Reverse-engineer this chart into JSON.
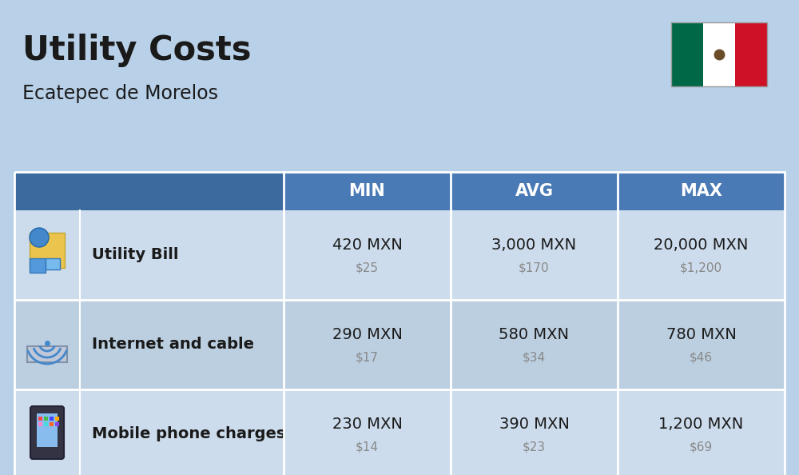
{
  "title": "Utility Costs",
  "subtitle": "Ecatepec de Morelos",
  "background_color": "#b8d0e8",
  "header_color": "#4a7ab5",
  "header_text_color": "#ffffff",
  "row_color_1": "#ccdcec",
  "row_color_2": "#bccfe0",
  "col_headers": [
    "MIN",
    "AVG",
    "MAX"
  ],
  "rows": [
    {
      "label": "Utility Bill",
      "min_mxn": "420 MXN",
      "min_usd": "$25",
      "avg_mxn": "3,000 MXN",
      "avg_usd": "$170",
      "max_mxn": "20,000 MXN",
      "max_usd": "$1,200",
      "icon": "utility"
    },
    {
      "label": "Internet and cable",
      "min_mxn": "290 MXN",
      "min_usd": "$17",
      "avg_mxn": "580 MXN",
      "avg_usd": "$34",
      "max_mxn": "780 MXN",
      "max_usd": "$46",
      "icon": "internet"
    },
    {
      "label": "Mobile phone charges",
      "min_mxn": "230 MXN",
      "min_usd": "$14",
      "avg_mxn": "390 MXN",
      "avg_usd": "$23",
      "max_mxn": "1,200 MXN",
      "max_usd": "$69",
      "icon": "mobile"
    }
  ],
  "title_fontsize": 30,
  "subtitle_fontsize": 17,
  "header_fontsize": 15,
  "label_fontsize": 14,
  "value_fontsize": 14,
  "usd_fontsize": 11,
  "usd_color": "#888888",
  "text_color": "#1a1a1a"
}
